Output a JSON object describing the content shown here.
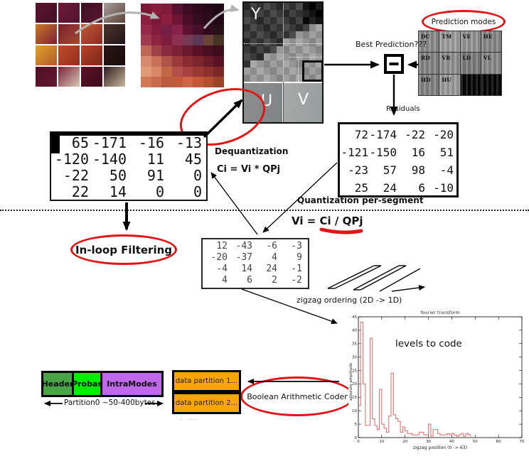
{
  "pipeline": {
    "prediction_modes_label": "Prediction modes",
    "best_prediction_label": "Best Prediction???",
    "residuals_label": "Residuals",
    "quantization_label": "Quantization per-segment",
    "dequantization_label": "Dequantization",
    "dequantization_formula": "Ci = Vi * QPj",
    "quantization_formula": "Vi = Ci / QPj",
    "inloop_label": "In-loop Filtering",
    "zigzag_label": "zigzag ordering  (2D -> 1D)",
    "bac_label": "Boolean Arithmetic Coder",
    "partition0_label": "Partition0 ~50-400bytes",
    "partitions_more": ". ...",
    "yuv": {
      "y": "Y",
      "u": "U",
      "v": "V"
    }
  },
  "matrices": {
    "dequantized": [
      [
        65,
        -171,
        -16,
        -13
      ],
      [
        -120,
        -140,
        11,
        45
      ],
      [
        -22,
        50,
        91,
        0
      ],
      [
        22,
        14,
        0,
        0
      ]
    ],
    "residuals": [
      [
        72,
        -174,
        -22,
        -20
      ],
      [
        -121,
        -150,
        16,
        51
      ],
      [
        -23,
        57,
        98,
        -4
      ],
      [
        25,
        24,
        6,
        -10
      ]
    ],
    "quantized": [
      [
        12,
        -43,
        -6,
        -3
      ],
      [
        -20,
        -37,
        4,
        9
      ],
      [
        -4,
        14,
        24,
        -1
      ],
      [
        4,
        6,
        2,
        -2
      ]
    ]
  },
  "prediction_modes": {
    "cells": [
      {
        "label": "DC",
        "shade": "#8d8d8d"
      },
      {
        "label": "TM",
        "shade": "#a0a0a0"
      },
      {
        "label": "VE",
        "shade": "#959595"
      },
      {
        "label": "HE",
        "shade": "#8a8a8a"
      },
      {
        "label": "RD",
        "shade": "#878787"
      },
      {
        "label": "VR",
        "shade": "#939393"
      },
      {
        "label": "LD",
        "shade": "#7d7d7d"
      },
      {
        "label": "VL",
        "shade": "#8b8b8b"
      },
      {
        "label": "HD",
        "shade": "#848484"
      },
      {
        "label": "HU",
        "shade": "#9d9d9d"
      },
      {
        "label": "",
        "shade": "#070707"
      },
      {
        "label": "",
        "shade": "#070707"
      }
    ]
  },
  "bitstream": {
    "header": {
      "label": "Header",
      "color": "#4aa546"
    },
    "probas": {
      "label": "Probas",
      "color": "#00ee00"
    },
    "intramodes": {
      "label": "IntraModes",
      "color": "#c068ea"
    },
    "partitions": [
      "data partition 1...",
      "data partition 2..."
    ],
    "partition_color": "#f9a602"
  },
  "colors": {
    "accent_red": "#e41414",
    "arrow_gray": "#b3b3b3"
  },
  "chart_data": {
    "type": "line",
    "style": "step",
    "title": "fourier transform",
    "xlabel": "zigzag position  (0 -> 63)",
    "ylabel": "absolute amplitude",
    "annotation": "levels to code",
    "legend": [],
    "grid": false,
    "xlim": [
      0,
      70
    ],
    "ylim": [
      0,
      45
    ],
    "xticks": [
      0,
      10,
      20,
      30,
      40,
      50,
      60,
      70
    ],
    "yticks": [
      0,
      5,
      10,
      15,
      20,
      25,
      30,
      35,
      40,
      45
    ],
    "color": "#e87272",
    "x": [
      0,
      1,
      2,
      3,
      4,
      5,
      6,
      7,
      8,
      9,
      10,
      11,
      12,
      13,
      14,
      15,
      16,
      17,
      18,
      19,
      20,
      21,
      22,
      23,
      24,
      25,
      26,
      27,
      28,
      29,
      30,
      31,
      32,
      33,
      34,
      35,
      36,
      37,
      38,
      39,
      40,
      41,
      42,
      43,
      44,
      45,
      46,
      47,
      48
    ],
    "y": [
      12,
      43,
      20,
      4.5,
      4.5,
      37,
      7,
      4.5,
      3,
      18,
      5,
      3.5,
      2,
      8,
      24,
      8.5,
      7,
      6,
      2,
      4,
      2.5,
      1.5,
      1.5,
      1,
      1,
      1,
      2,
      2,
      1,
      1,
      5,
      0.5,
      3,
      3,
      1.5,
      1,
      1,
      1,
      1.5,
      1,
      1.5,
      1,
      0.5,
      1,
      1.5,
      0.5,
      1.5,
      1,
      0.5
    ]
  },
  "photo_tiles": [
    [
      "#5c1430",
      "#441026"
    ],
    [
      "#6d1a38",
      "#521430"
    ],
    [
      "#3c0e22",
      "#5a1830"
    ],
    [
      "#a89f9c",
      "#5c4238"
    ],
    [
      "#c97a28",
      "#7a1e34"
    ],
    [
      "#7c2030",
      "#a34a2e"
    ],
    [
      "#c05a30",
      "#8c2a28"
    ],
    [
      "#4a342e",
      "#241418"
    ],
    [
      "#e0a030",
      "#b05a24"
    ],
    [
      "#c04c28",
      "#942e20"
    ],
    [
      "#b8442a",
      "#7c2418"
    ],
    [
      "#2a1414",
      "#180c0c"
    ],
    [
      "#4c0e24",
      "#661830"
    ],
    [
      "#7a2238",
      "#d8c8b8"
    ],
    [
      "#5c1228",
      "#3c0c1c"
    ],
    [
      "#2e1a20",
      "#c8b89c"
    ]
  ],
  "pixel_tiles": [
    "#7a1838",
    "#8a1c3e",
    "#7e1a3a",
    "#581030",
    "#3c0c22",
    "#2e0a1c",
    "#26081a",
    "#1e0614",
    "#8a2040",
    "#7c1838",
    "#8c1e40",
    "#6e1434",
    "#4a0e28",
    "#340c20",
    "#2a0a1c",
    "#220818",
    "#96284a",
    "#821c3c",
    "#742044",
    "#86224c",
    "#5e1232",
    "#46102c",
    "#300a1e",
    "#281018",
    "#a03a50",
    "#8c2442",
    "#7e1e3e",
    "#903050",
    "#763a52",
    "#5c3856",
    "#6a4434",
    "#483424",
    "#c06858",
    "#a04048",
    "#8a2a42",
    "#7c2038",
    "#6a1830",
    "#581028",
    "#480e22",
    "#3a0c1c",
    "#d88a70",
    "#c87058",
    "#b05448",
    "#9c3a3c",
    "#8c2a32",
    "#7c2630",
    "#6a1c28",
    "#581424",
    "#e09a78",
    "#d88866",
    "#c06848",
    "#b4504a",
    "#a84040",
    "#9a3836",
    "#8c3030",
    "#7a2828",
    "#d07858",
    "#c86a4e",
    "#ba5a40",
    "#c05c3c",
    "#cc6644",
    "#c25a38",
    "#b0502e",
    "#9c4428"
  ]
}
